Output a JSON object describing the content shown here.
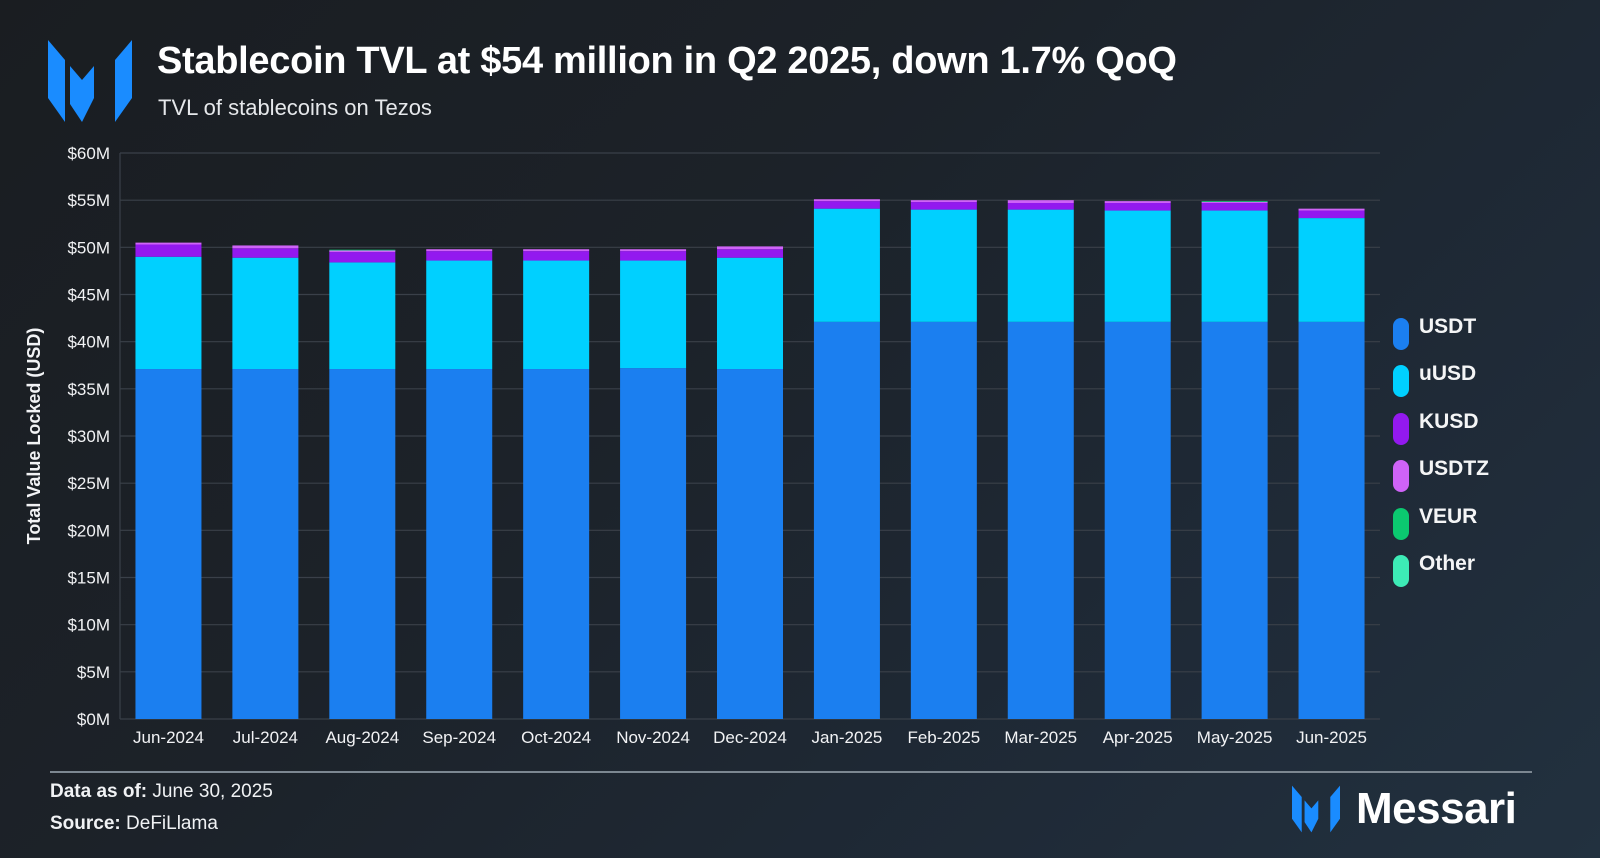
{
  "header": {
    "title": "Stablecoin TVL at $54 million in Q2 2025, down 1.7% QoQ",
    "subtitle": "TVL of stablecoins on Tezos",
    "logo_icon": "messari-logo-icon"
  },
  "footer": {
    "data_as_of_label": "Data as of:",
    "data_as_of_value": "June 30, 2025",
    "source_label": "Source:",
    "source_value": "DeFiLlama",
    "brand_name": "Messari"
  },
  "colors": {
    "brand_blue": "#1a8cff"
  },
  "chart_data": {
    "type": "bar",
    "stacked": true,
    "title": "Stablecoin TVL at $54 million in Q2 2025, down 1.7% QoQ",
    "subtitle": "TVL of stablecoins on Tezos",
    "xlabel": "",
    "ylabel": "Total Value Locked (USD)",
    "ylim": [
      0,
      60
    ],
    "yunit": "$M",
    "yticks": [
      0,
      5,
      10,
      15,
      20,
      25,
      30,
      35,
      40,
      45,
      50,
      55,
      60
    ],
    "ytick_labels": [
      "$0M",
      "$5M",
      "$10M",
      "$15M",
      "$20M",
      "$25M",
      "$30M",
      "$35M",
      "$40M",
      "$45M",
      "$50M",
      "$55M",
      "$60M"
    ],
    "grid": true,
    "legend_position": "right",
    "categories": [
      "Jun-2024",
      "Jul-2024",
      "Aug-2024",
      "Sep-2024",
      "Oct-2024",
      "Nov-2024",
      "Dec-2024",
      "Jan-2025",
      "Feb-2025",
      "Mar-2025",
      "Apr-2025",
      "May-2025",
      "Jun-2025"
    ],
    "series": [
      {
        "name": "USDT",
        "color": "#1b7ff0",
        "values": [
          37.1,
          37.1,
          37.1,
          37.1,
          37.1,
          37.2,
          37.1,
          42.1,
          42.1,
          42.1,
          42.1,
          42.1,
          42.1
        ]
      },
      {
        "name": "uUSD",
        "color": "#00d0ff",
        "values": [
          11.9,
          11.8,
          11.3,
          11.5,
          11.5,
          11.4,
          11.8,
          12.0,
          11.9,
          11.9,
          11.8,
          11.8,
          11.0
        ]
      },
      {
        "name": "KUSD",
        "color": "#9319ef",
        "values": [
          1.3,
          1.0,
          1.1,
          1.0,
          1.0,
          1.0,
          0.9,
          0.8,
          0.8,
          0.7,
          0.8,
          0.8,
          0.8
        ]
      },
      {
        "name": "USDTZ",
        "color": "#cf63f7",
        "values": [
          0.2,
          0.3,
          0.2,
          0.2,
          0.2,
          0.2,
          0.3,
          0.2,
          0.2,
          0.3,
          0.2,
          0.15,
          0.2
        ]
      },
      {
        "name": "VEUR",
        "color": "#0bc970",
        "values": [
          0.0,
          0.0,
          0.05,
          0.0,
          0.0,
          0.0,
          0.0,
          0.0,
          0.0,
          0.0,
          0.0,
          0.05,
          0.0
        ]
      },
      {
        "name": "Other",
        "color": "#3debb6",
        "values": [
          0.0,
          0.0,
          0.0,
          0.0,
          0.0,
          0.0,
          0.0,
          0.0,
          0.0,
          0.0,
          0.0,
          0.0,
          0.0
        ]
      }
    ]
  }
}
